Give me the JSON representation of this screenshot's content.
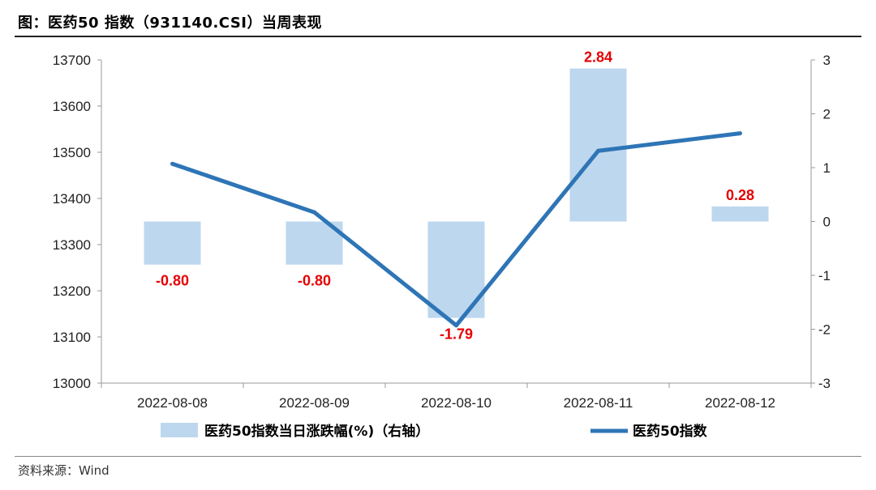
{
  "header": {
    "title": "图：医药50 指数（931140.CSI）当周表现"
  },
  "footer": {
    "source": "资料来源：Wind"
  },
  "colors": {
    "bar": "#bdd7ee",
    "line": "#2e75b6",
    "label": "#e60000"
  },
  "chart_data": {
    "type": "bar+line",
    "title": "",
    "categories": [
      "2022-08-08",
      "2022-08-09",
      "2022-08-10",
      "2022-08-11",
      "2022-08-12"
    ],
    "series": [
      {
        "name": "医药50指数当日涨跌幅(%)（右轴）",
        "type": "bar",
        "axis": "right",
        "values": [
          -0.8,
          -0.8,
          -1.79,
          2.84,
          0.28
        ],
        "labels": [
          "-0.80",
          "-0.80",
          "-1.79",
          "2.84",
          "0.28"
        ]
      },
      {
        "name": "医药50指数",
        "type": "line",
        "axis": "left",
        "values": [
          13475,
          13370,
          13125,
          13503,
          13541
        ]
      }
    ],
    "y_left": {
      "min": 13000,
      "max": 13700,
      "ticks": [
        "13000",
        "13100",
        "13200",
        "13300",
        "13400",
        "13500",
        "13600",
        "13700"
      ]
    },
    "y_right": {
      "min": -3,
      "max": 3,
      "ticks": [
        "-3",
        "-2",
        "-1",
        "0",
        "1",
        "2",
        "3"
      ]
    },
    "grid": false,
    "legend": "bottom"
  }
}
